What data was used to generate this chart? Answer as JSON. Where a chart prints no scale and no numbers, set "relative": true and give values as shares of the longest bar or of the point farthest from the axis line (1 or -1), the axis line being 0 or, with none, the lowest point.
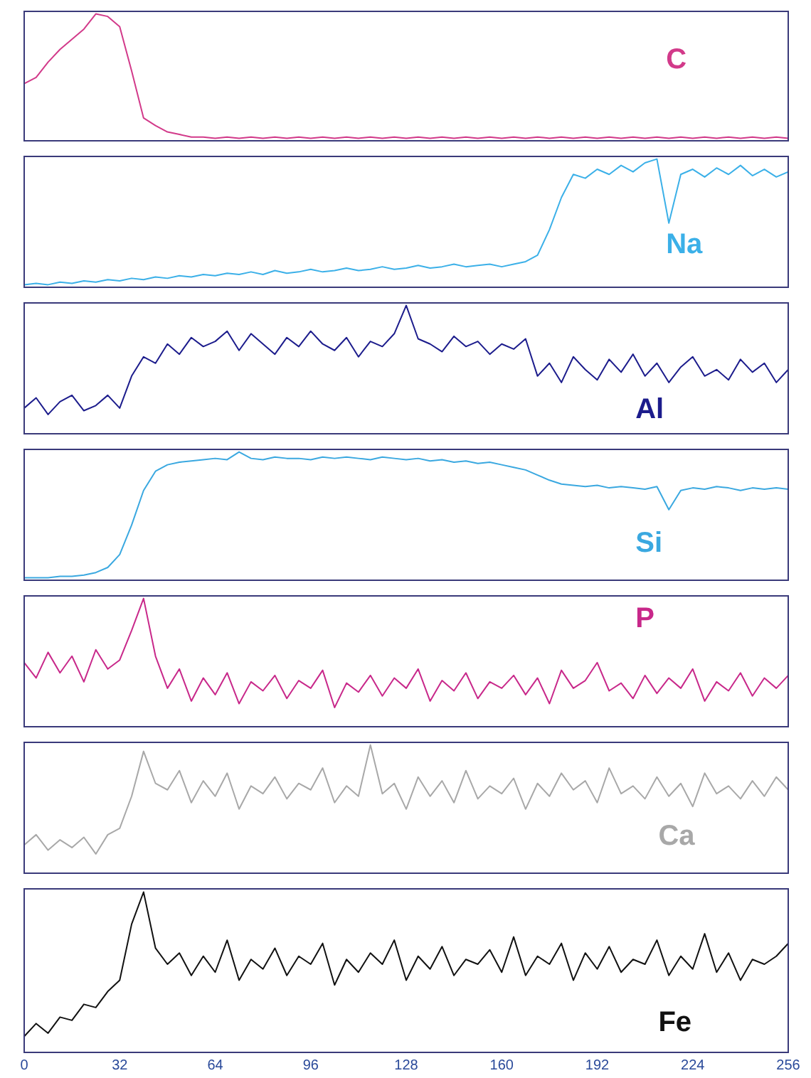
{
  "chart_data": [
    {
      "type": "line",
      "relative": true,
      "xlim": [
        0,
        256
      ],
      "tick_labels": false,
      "x": [
        0,
        4,
        8,
        12,
        16,
        20,
        24,
        28,
        32,
        36,
        40,
        44,
        48,
        52,
        56,
        60,
        64,
        68,
        72,
        76,
        80,
        84,
        88,
        92,
        96,
        100,
        104,
        108,
        112,
        116,
        120,
        124,
        128,
        132,
        136,
        140,
        144,
        148,
        152,
        156,
        160,
        164,
        168,
        172,
        176,
        180,
        184,
        188,
        192,
        196,
        200,
        204,
        208,
        212,
        216,
        220,
        224,
        228,
        232,
        236,
        240,
        244,
        248,
        252,
        256
      ],
      "series": [
        {
          "name": "C",
          "color": "#d23a8a",
          "values": [
            0.45,
            0.5,
            0.62,
            0.72,
            0.8,
            0.88,
            1.0,
            0.98,
            0.9,
            0.55,
            0.18,
            0.12,
            0.07,
            0.05,
            0.03,
            0.03,
            0.02,
            0.03,
            0.02,
            0.03,
            0.02,
            0.03,
            0.02,
            0.03,
            0.02,
            0.03,
            0.02,
            0.03,
            0.02,
            0.03,
            0.02,
            0.03,
            0.02,
            0.03,
            0.02,
            0.03,
            0.02,
            0.03,
            0.02,
            0.03,
            0.02,
            0.03,
            0.02,
            0.03,
            0.02,
            0.03,
            0.02,
            0.03,
            0.02,
            0.03,
            0.02,
            0.03,
            0.02,
            0.03,
            0.02,
            0.03,
            0.02,
            0.03,
            0.02,
            0.03,
            0.02,
            0.03,
            0.02,
            0.03,
            0.02
          ]
        }
      ]
    },
    {
      "type": "line",
      "relative": true,
      "xlim": [
        0,
        256
      ],
      "tick_labels": false,
      "x": [
        0,
        4,
        8,
        12,
        16,
        20,
        24,
        28,
        32,
        36,
        40,
        44,
        48,
        52,
        56,
        60,
        64,
        68,
        72,
        76,
        80,
        84,
        88,
        92,
        96,
        100,
        104,
        108,
        112,
        116,
        120,
        124,
        128,
        132,
        136,
        140,
        144,
        148,
        152,
        156,
        160,
        164,
        168,
        172,
        176,
        180,
        184,
        188,
        192,
        196,
        200,
        204,
        208,
        212,
        216,
        220,
        224,
        228,
        232,
        236,
        240,
        244,
        248,
        252,
        256
      ],
      "series": [
        {
          "name": "Na",
          "color": "#3bb0e8",
          "values": [
            0.02,
            0.03,
            0.02,
            0.04,
            0.03,
            0.05,
            0.04,
            0.06,
            0.05,
            0.07,
            0.06,
            0.08,
            0.07,
            0.09,
            0.08,
            0.1,
            0.09,
            0.11,
            0.1,
            0.12,
            0.1,
            0.13,
            0.11,
            0.12,
            0.14,
            0.12,
            0.13,
            0.15,
            0.13,
            0.14,
            0.16,
            0.14,
            0.15,
            0.17,
            0.15,
            0.16,
            0.18,
            0.16,
            0.17,
            0.18,
            0.16,
            0.18,
            0.2,
            0.25,
            0.45,
            0.7,
            0.88,
            0.85,
            0.92,
            0.88,
            0.95,
            0.9,
            0.97,
            1.0,
            0.5,
            0.88,
            0.92,
            0.86,
            0.93,
            0.88,
            0.95,
            0.87,
            0.92,
            0.86,
            0.9
          ]
        }
      ]
    },
    {
      "type": "line",
      "relative": true,
      "xlim": [
        0,
        256
      ],
      "tick_labels": false,
      "x": [
        0,
        4,
        8,
        12,
        16,
        20,
        24,
        28,
        32,
        36,
        40,
        44,
        48,
        52,
        56,
        60,
        64,
        68,
        72,
        76,
        80,
        84,
        88,
        92,
        96,
        100,
        104,
        108,
        112,
        116,
        120,
        124,
        128,
        132,
        136,
        140,
        144,
        148,
        152,
        156,
        160,
        164,
        168,
        172,
        176,
        180,
        184,
        188,
        192,
        196,
        200,
        204,
        208,
        212,
        216,
        220,
        224,
        228,
        232,
        236,
        240,
        244,
        248,
        252,
        256
      ],
      "series": [
        {
          "name": "Al",
          "color": "#1c1c8c",
          "values": [
            0.2,
            0.28,
            0.15,
            0.25,
            0.3,
            0.18,
            0.22,
            0.3,
            0.2,
            0.45,
            0.6,
            0.55,
            0.7,
            0.62,
            0.75,
            0.68,
            0.72,
            0.8,
            0.65,
            0.78,
            0.7,
            0.62,
            0.75,
            0.68,
            0.8,
            0.7,
            0.65,
            0.75,
            0.6,
            0.72,
            0.68,
            0.78,
            1.0,
            0.74,
            0.7,
            0.64,
            0.76,
            0.68,
            0.72,
            0.62,
            0.7,
            0.66,
            0.74,
            0.45,
            0.55,
            0.4,
            0.6,
            0.5,
            0.42,
            0.58,
            0.48,
            0.62,
            0.45,
            0.55,
            0.4,
            0.52,
            0.6,
            0.45,
            0.5,
            0.42,
            0.58,
            0.48,
            0.55,
            0.4,
            0.5
          ]
        }
      ]
    },
    {
      "type": "line",
      "relative": true,
      "xlim": [
        0,
        256
      ],
      "tick_labels": false,
      "x": [
        0,
        4,
        8,
        12,
        16,
        20,
        24,
        28,
        32,
        36,
        40,
        44,
        48,
        52,
        56,
        60,
        64,
        68,
        72,
        76,
        80,
        84,
        88,
        92,
        96,
        100,
        104,
        108,
        112,
        116,
        120,
        124,
        128,
        132,
        136,
        140,
        144,
        148,
        152,
        156,
        160,
        164,
        168,
        172,
        176,
        180,
        184,
        188,
        192,
        196,
        200,
        204,
        208,
        212,
        216,
        220,
        224,
        228,
        232,
        236,
        240,
        244,
        248,
        252,
        256
      ],
      "series": [
        {
          "name": "Si",
          "color": "#3aa8e0",
          "values": [
            0.02,
            0.02,
            0.02,
            0.03,
            0.03,
            0.04,
            0.06,
            0.1,
            0.2,
            0.43,
            0.7,
            0.85,
            0.9,
            0.92,
            0.93,
            0.94,
            0.95,
            0.94,
            1.0,
            0.95,
            0.94,
            0.96,
            0.95,
            0.95,
            0.94,
            0.96,
            0.95,
            0.96,
            0.95,
            0.94,
            0.96,
            0.95,
            0.94,
            0.95,
            0.93,
            0.94,
            0.92,
            0.93,
            0.91,
            0.92,
            0.9,
            0.88,
            0.86,
            0.82,
            0.78,
            0.75,
            0.74,
            0.73,
            0.74,
            0.72,
            0.73,
            0.72,
            0.71,
            0.73,
            0.55,
            0.7,
            0.72,
            0.71,
            0.73,
            0.72,
            0.7,
            0.72,
            0.71,
            0.72,
            0.71
          ]
        }
      ]
    },
    {
      "type": "line",
      "relative": true,
      "xlim": [
        0,
        256
      ],
      "tick_labels": false,
      "x": [
        0,
        4,
        8,
        12,
        16,
        20,
        24,
        28,
        32,
        36,
        40,
        44,
        48,
        52,
        56,
        60,
        64,
        68,
        72,
        76,
        80,
        84,
        88,
        92,
        96,
        100,
        104,
        108,
        112,
        116,
        120,
        124,
        128,
        132,
        136,
        140,
        144,
        148,
        152,
        156,
        160,
        164,
        168,
        172,
        176,
        180,
        184,
        188,
        192,
        196,
        200,
        204,
        208,
        212,
        216,
        220,
        224,
        228,
        232,
        236,
        240,
        244,
        248,
        252,
        256
      ],
      "series": [
        {
          "name": "P",
          "color": "#c8288a",
          "values": [
            0.5,
            0.38,
            0.58,
            0.42,
            0.55,
            0.35,
            0.6,
            0.45,
            0.52,
            0.75,
            1.0,
            0.55,
            0.3,
            0.45,
            0.2,
            0.38,
            0.25,
            0.42,
            0.18,
            0.35,
            0.28,
            0.4,
            0.22,
            0.36,
            0.3,
            0.44,
            0.15,
            0.34,
            0.27,
            0.4,
            0.24,
            0.38,
            0.3,
            0.45,
            0.2,
            0.36,
            0.28,
            0.42,
            0.22,
            0.35,
            0.3,
            0.4,
            0.25,
            0.38,
            0.18,
            0.44,
            0.3,
            0.36,
            0.5,
            0.28,
            0.34,
            0.22,
            0.4,
            0.26,
            0.38,
            0.3,
            0.45,
            0.2,
            0.35,
            0.28,
            0.42,
            0.24,
            0.38,
            0.3,
            0.4
          ]
        }
      ]
    },
    {
      "type": "line",
      "relative": true,
      "xlim": [
        0,
        256
      ],
      "tick_labels": false,
      "x": [
        0,
        4,
        8,
        12,
        16,
        20,
        24,
        28,
        32,
        36,
        40,
        44,
        48,
        52,
        56,
        60,
        64,
        68,
        72,
        76,
        80,
        84,
        88,
        92,
        96,
        100,
        104,
        108,
        112,
        116,
        120,
        124,
        128,
        132,
        136,
        140,
        144,
        148,
        152,
        156,
        160,
        164,
        168,
        172,
        176,
        180,
        184,
        188,
        192,
        196,
        200,
        204,
        208,
        212,
        216,
        220,
        224,
        228,
        232,
        236,
        240,
        244,
        248,
        252,
        256
      ],
      "series": [
        {
          "name": "Ca",
          "color": "#a8a8a8",
          "values": [
            0.22,
            0.3,
            0.18,
            0.26,
            0.2,
            0.28,
            0.15,
            0.3,
            0.35,
            0.6,
            0.95,
            0.7,
            0.65,
            0.8,
            0.55,
            0.72,
            0.6,
            0.78,
            0.5,
            0.68,
            0.62,
            0.75,
            0.58,
            0.7,
            0.65,
            0.82,
            0.55,
            0.68,
            0.6,
            1.0,
            0.62,
            0.7,
            0.5,
            0.75,
            0.6,
            0.72,
            0.55,
            0.8,
            0.58,
            0.68,
            0.62,
            0.74,
            0.5,
            0.7,
            0.6,
            0.78,
            0.65,
            0.72,
            0.55,
            0.82,
            0.62,
            0.68,
            0.58,
            0.75,
            0.6,
            0.7,
            0.52,
            0.78,
            0.62,
            0.68,
            0.58,
            0.72,
            0.6,
            0.75,
            0.65
          ]
        }
      ]
    },
    {
      "type": "line",
      "relative": true,
      "xlim": [
        0,
        256
      ],
      "xticks": [
        0,
        32,
        64,
        96,
        128,
        160,
        192,
        224,
        256
      ],
      "tick_labels": "x",
      "x": [
        0,
        4,
        8,
        12,
        16,
        20,
        24,
        28,
        32,
        36,
        40,
        44,
        48,
        52,
        56,
        60,
        64,
        68,
        72,
        76,
        80,
        84,
        88,
        92,
        96,
        100,
        104,
        108,
        112,
        116,
        120,
        124,
        128,
        132,
        136,
        140,
        144,
        148,
        152,
        156,
        160,
        164,
        168,
        172,
        176,
        180,
        184,
        188,
        192,
        196,
        200,
        204,
        208,
        212,
        216,
        220,
        224,
        228,
        232,
        236,
        240,
        244,
        248,
        252,
        256
      ],
      "series": [
        {
          "name": "Fe",
          "color": "#111111",
          "values": [
            0.1,
            0.18,
            0.12,
            0.22,
            0.2,
            0.3,
            0.28,
            0.38,
            0.45,
            0.8,
            1.0,
            0.65,
            0.55,
            0.62,
            0.48,
            0.6,
            0.5,
            0.7,
            0.45,
            0.58,
            0.52,
            0.65,
            0.48,
            0.6,
            0.55,
            0.68,
            0.42,
            0.58,
            0.5,
            0.62,
            0.55,
            0.7,
            0.45,
            0.6,
            0.52,
            0.66,
            0.48,
            0.58,
            0.55,
            0.64,
            0.5,
            0.72,
            0.48,
            0.6,
            0.55,
            0.68,
            0.45,
            0.62,
            0.52,
            0.66,
            0.5,
            0.58,
            0.55,
            0.7,
            0.48,
            0.6,
            0.52,
            0.74,
            0.5,
            0.62,
            0.45,
            0.58,
            0.55,
            0.6,
            0.68
          ]
        }
      ]
    }
  ]
}
